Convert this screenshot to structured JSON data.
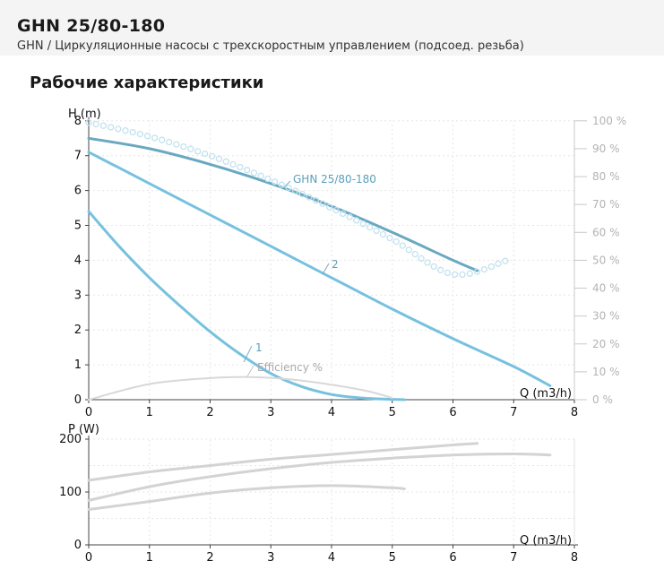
{
  "header": {
    "title": "GHN 25/80-180",
    "subtitle": "GHN / Циркуляционные насосы с трехскоростным управлением (подсоед. резьба)"
  },
  "section_title": "Рабочие характеристики",
  "chart_data": [
    {
      "type": "line",
      "ylabel": "H (m)",
      "xlabel": "Q (m3/h)",
      "xlim": [
        0,
        8
      ],
      "ylim": [
        0,
        8
      ],
      "x_ticks": [
        0,
        1,
        2,
        3,
        4,
        5,
        6,
        7,
        8
      ],
      "y_ticks": [
        0,
        1,
        2,
        3,
        4,
        5,
        6,
        7,
        8
      ],
      "y2_ticks": [
        "0 %",
        "10 %",
        "20 %",
        "30 %",
        "40 %",
        "50 %",
        "60 %",
        "70 %",
        "80 %",
        "90 %",
        "100 %"
      ],
      "grid": true,
      "series": [
        {
          "name": "GHN 25/80-180",
          "color": "#6aa8c2",
          "x": [
            0,
            1,
            2,
            3,
            4,
            5,
            6,
            6.4
          ],
          "y": [
            7.5,
            7.2,
            6.75,
            6.2,
            5.55,
            4.8,
            4.0,
            3.7
          ]
        },
        {
          "name": "2",
          "color": "#77c1df",
          "x": [
            0,
            1,
            2,
            3,
            4,
            5,
            6,
            7,
            7.6
          ],
          "y": [
            7.1,
            6.2,
            5.3,
            4.4,
            3.5,
            2.6,
            1.75,
            0.95,
            0.4
          ]
        },
        {
          "name": "1",
          "color": "#77c1df",
          "x": [
            0,
            0.5,
            1,
            1.5,
            2,
            2.5,
            3,
            3.5,
            4,
            4.5,
            5,
            5.2
          ],
          "y": [
            5.4,
            4.4,
            3.5,
            2.7,
            1.95,
            1.3,
            0.75,
            0.38,
            0.15,
            0.05,
            0.01,
            0
          ]
        },
        {
          "name": "",
          "role": "max-curve",
          "color": "#c2e2ee",
          "x": [
            0,
            1,
            2,
            3,
            4,
            5,
            6,
            6.9
          ],
          "y": [
            7.95,
            7.55,
            7.0,
            6.3,
            5.5,
            4.6,
            3.6,
            4.0
          ]
        },
        {
          "name": "Efficiency %",
          "color": "#d8d8d8",
          "x": [
            0,
            1,
            2,
            2.7,
            3.5,
            4.5,
            5.0
          ],
          "y": [
            0,
            0.45,
            0.62,
            0.65,
            0.55,
            0.28,
            0.05
          ]
        }
      ]
    },
    {
      "type": "line",
      "ylabel": "P (W)",
      "xlabel": "Q (m3/h)",
      "xlim": [
        0,
        8
      ],
      "ylim": [
        0,
        200
      ],
      "x_ticks": [
        0,
        1,
        2,
        3,
        4,
        5,
        6,
        7,
        8
      ],
      "y_ticks": [
        0,
        100,
        200
      ],
      "grid": true,
      "series": [
        {
          "name": "",
          "color": "#d3d3d3",
          "x": [
            0,
            1,
            2,
            3,
            4,
            5,
            6,
            6.4
          ],
          "y": [
            122,
            138,
            150,
            162,
            171,
            180,
            189,
            192
          ]
        },
        {
          "name": "",
          "color": "#d3d3d3",
          "x": [
            0,
            1,
            2,
            3,
            4,
            5,
            6,
            7,
            7.6
          ],
          "y": [
            84,
            110,
            129,
            144,
            156,
            164,
            170,
            172,
            170
          ]
        },
        {
          "name": "",
          "color": "#d3d3d3",
          "x": [
            0,
            1,
            2,
            3,
            4,
            5,
            5.2
          ],
          "y": [
            67,
            82,
            98,
            108,
            112,
            108,
            106
          ]
        }
      ]
    }
  ]
}
